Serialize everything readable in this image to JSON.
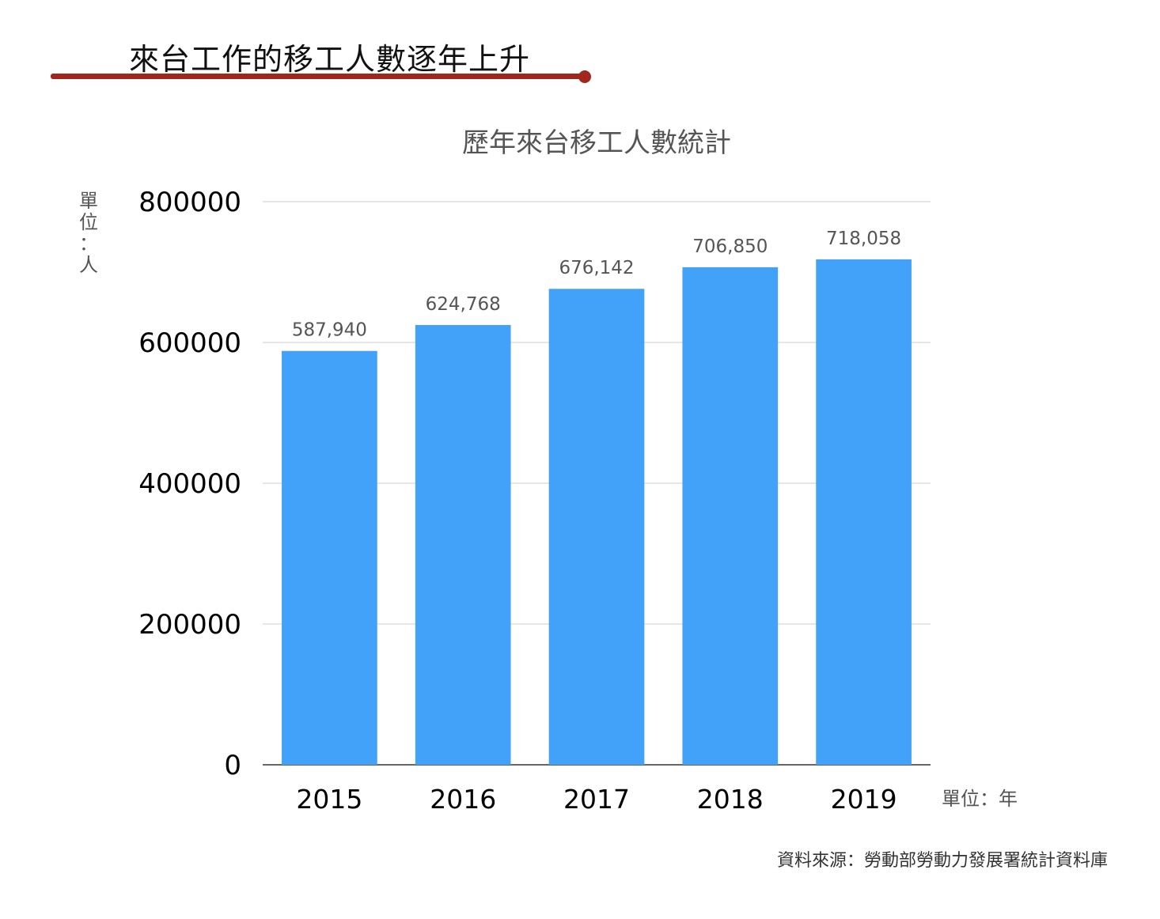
{
  "headline": "來台工作的移工人數逐年上升",
  "source": "資料來源：勞動部勞動力發展署統計資料庫",
  "accent_color": "#a3261c",
  "bar_color": "#42a1f9",
  "chart_data": {
    "type": "bar",
    "title": "歷年來台移工人數統計",
    "categories": [
      "2015",
      "2016",
      "2017",
      "2018",
      "2019"
    ],
    "values": [
      587940,
      624768,
      676142,
      706850,
      718058
    ],
    "value_labels": [
      "587,940",
      "624,768",
      "676,142",
      "706,850",
      "718,058"
    ],
    "ylim": [
      0,
      800000
    ],
    "yticks": [
      0,
      200000,
      400000,
      600000,
      800000
    ],
    "ytick_labels": [
      "0",
      "200000",
      "400000",
      "600000",
      "800000"
    ],
    "ylabel": "單位：人",
    "xlabel": "單位：年",
    "grid": true
  }
}
